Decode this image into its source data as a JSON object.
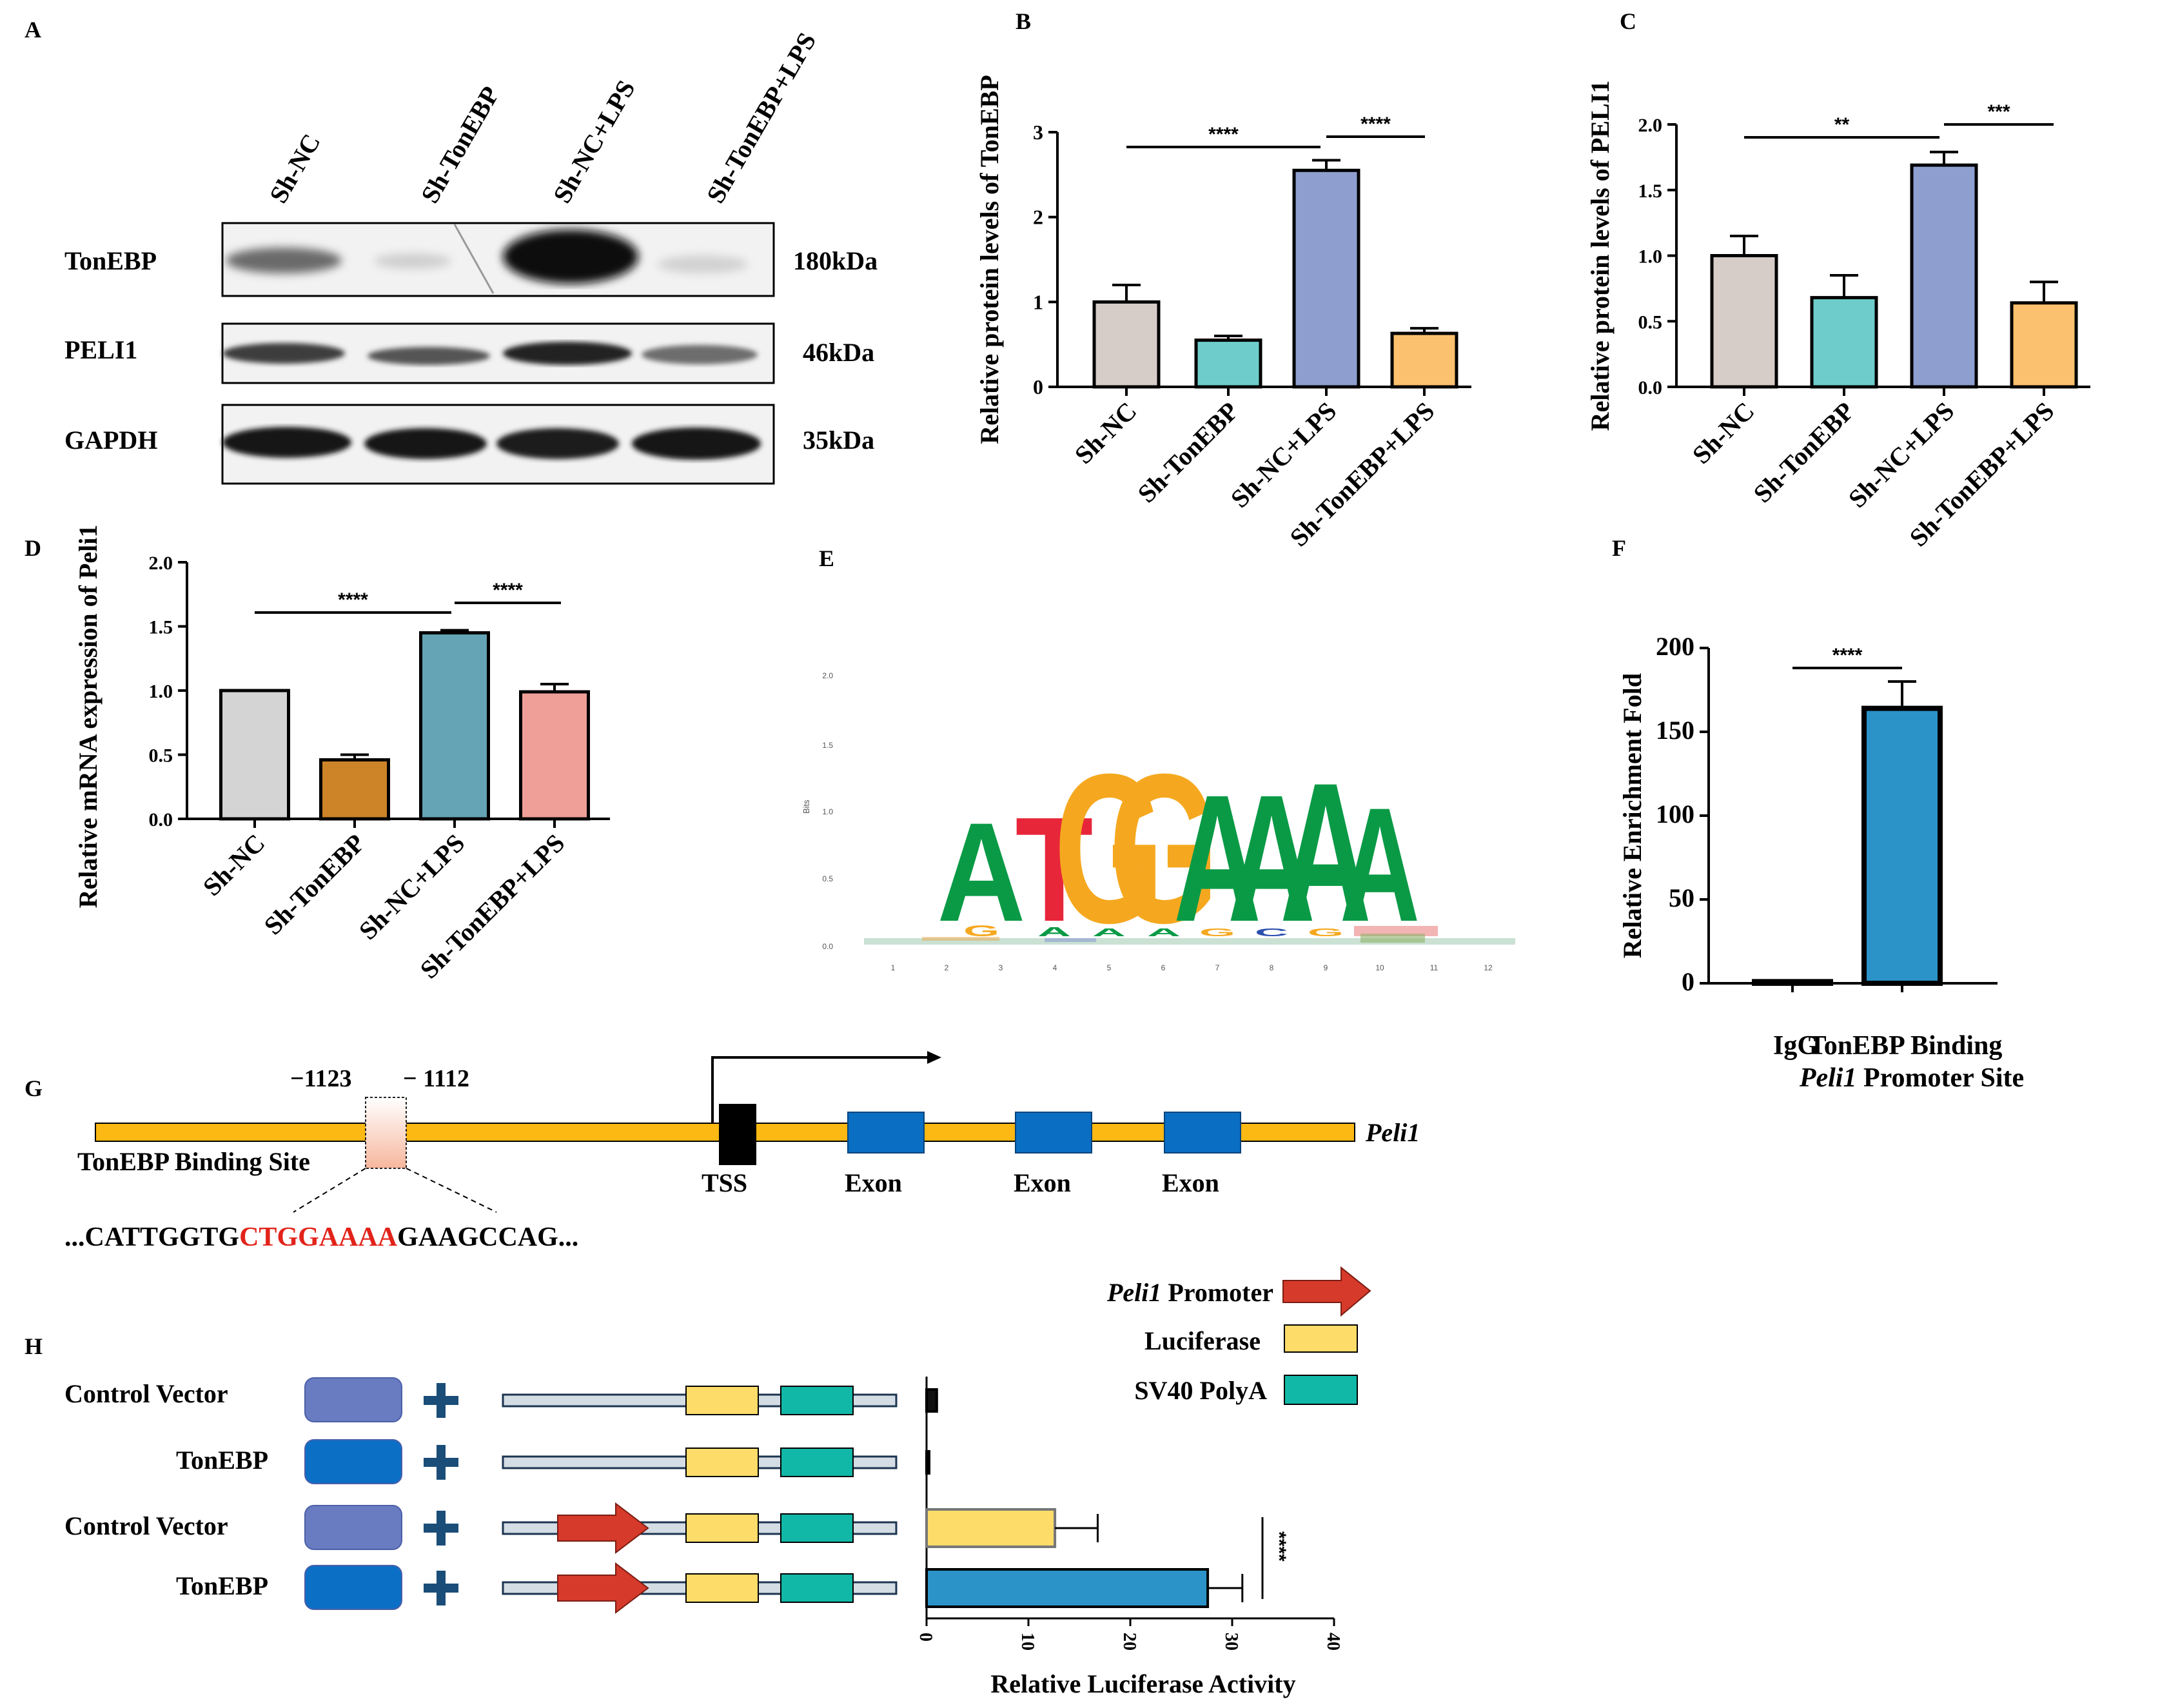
{
  "colors": {
    "gray": "#d6cdc8",
    "teal": "#6ecdcb",
    "lavender": "#8e9fcf",
    "orange": "#fbc16e",
    "d_gray": "#d4d4d4",
    "d_brown": "#cd8328",
    "d_blue": "#64a4b4",
    "d_pink": "#ef9f97",
    "f_blue": "#2b93c8",
    "gene_yellow": "#fcb813",
    "exon_blue": "#0a6ec3",
    "arrow_red": "#d63a2a",
    "luc_yellow": "#fddc6a",
    "polya_teal": "#11b8a8",
    "vec_purple": "#6a7cc1",
    "tonebp_blue": "#0b6fc6",
    "plus_navy": "#1a4d78",
    "motif_green": "#0a9a46",
    "motif_orange": "#f5a81f",
    "motif_red": "#e8263a",
    "motif_blue": "#2a4fae"
  },
  "panels": {
    "A": {
      "letter": "A",
      "lanes": [
        "Sh-NC",
        "Sh-TonEBP",
        "Sh-NC+LPS",
        "Sh-TonEBP+LPS"
      ],
      "rows": [
        {
          "name": "TonEBP",
          "size": "180kDa"
        },
        {
          "name": "PELI1",
          "size": "46kDa"
        },
        {
          "name": "GAPDH",
          "size": "35kDa"
        }
      ]
    },
    "E": {
      "letter": "E",
      "ylabel": "Bits",
      "motif": "ATGGAAAA"
    },
    "G": {
      "letter": "G",
      "pos1": "−1123",
      "pos2": "− 1112",
      "binding_label": "TonEBP Binding Site",
      "gene": "Peli1",
      "tss": "TSS",
      "exon": "Exon",
      "seq_left": "...CATTGGTG",
      "seq_mid": "CTGGAAAA",
      "seq_right": "GAAGCCAG..."
    },
    "H": {
      "letter": "H",
      "rows": [
        "Control Vector",
        "TonEBP",
        "Control Vector",
        "TonEBP"
      ],
      "legend": {
        "promoter_italic": "Peli1",
        "promoter": " Promoter",
        "luciferase": "Luciferase",
        "polya": "SV40 PolyA"
      }
    }
  },
  "chart_data": [
    {
      "id": "B",
      "letter": "B",
      "type": "bar",
      "ylabel": "Relative protein levels of TonEBP",
      "categories": [
        "Sh-NC",
        "Sh-TonEBP",
        "Sh-NC+LPS",
        "Sh-TonEBP+LPS"
      ],
      "values": [
        1.0,
        0.55,
        2.55,
        0.63
      ],
      "errors": [
        0.2,
        0.05,
        0.12,
        0.06
      ],
      "ylim": [
        0,
        3
      ],
      "yticks": [
        0,
        1,
        2,
        3
      ],
      "tick_labels": [
        "0",
        "1",
        "2",
        "3"
      ],
      "significance": [
        {
          "label": "****",
          "from": 0,
          "to": 2
        },
        {
          "label": "****",
          "from": 2,
          "to": 3
        }
      ]
    },
    {
      "id": "C",
      "letter": "C",
      "type": "bar",
      "ylabel": "Relative protein levels of PELI1",
      "categories": [
        "Sh-NC",
        "Sh-TonEBP",
        "Sh-NC+LPS",
        "Sh-TonEBP+LPS"
      ],
      "values": [
        1.0,
        0.68,
        1.69,
        0.64
      ],
      "errors": [
        0.15,
        0.17,
        0.1,
        0.16
      ],
      "ylim": [
        0,
        2.0
      ],
      "yticks": [
        0,
        0.5,
        1.0,
        1.5,
        2.0
      ],
      "tick_labels": [
        "0.0",
        "0.5",
        "1.0",
        "1.5",
        "2.0"
      ],
      "significance": [
        {
          "label": "**",
          "from": 0,
          "to": 2
        },
        {
          "label": "***",
          "from": 2,
          "to": 3
        }
      ]
    },
    {
      "id": "D",
      "letter": "D",
      "type": "bar",
      "ylabel": "Relative mRNA expression of Peli1",
      "categories": [
        "Sh-NC",
        "Sh-TonEBP",
        "Sh-NC+LPS",
        "Sh-TonEBP+LPS"
      ],
      "values": [
        1.0,
        0.46,
        1.45,
        0.99
      ],
      "errors": [
        0,
        0.04,
        0.02,
        0.06
      ],
      "ylim": [
        0,
        2.0
      ],
      "yticks": [
        0,
        0.5,
        1.0,
        1.5,
        2.0
      ],
      "tick_labels": [
        "0.0",
        "0.5",
        "1.0",
        "1.5",
        "2.0"
      ],
      "significance": [
        {
          "label": "****",
          "from": 0,
          "to": 2
        },
        {
          "label": "****",
          "from": 2,
          "to": 3
        }
      ]
    },
    {
      "id": "F",
      "letter": "F",
      "type": "bar",
      "ylabel": "Relative Enrichment Fold",
      "categories": [
        "IgG",
        "TonEBP Binding Peli1 Promoter Site"
      ],
      "cat_line1": [
        "IgG",
        "TonEBP Binding"
      ],
      "cat_line2_italic": [
        "",
        "Peli1"
      ],
      "cat_line2": [
        "",
        " Promoter Site"
      ],
      "values": [
        1,
        164
      ],
      "errors": [
        0,
        16
      ],
      "ylim": [
        0,
        200
      ],
      "yticks": [
        0,
        50,
        100,
        150,
        200
      ],
      "tick_labels": [
        "0",
        "50",
        "100",
        "150",
        "200"
      ],
      "significance": [
        {
          "label": "****",
          "from": 0,
          "to": 1
        }
      ]
    },
    {
      "id": "H",
      "type": "bar",
      "orientation": "horizontal",
      "xlabel": "Relative Luciferase Activity",
      "categories": [
        "Control Vector",
        "TonEBP",
        "Control Vector + Peli1 Promoter",
        "TonEBP + Peli1 Promoter"
      ],
      "values": [
        1.0,
        0.1,
        12.6,
        27.6
      ],
      "errors": [
        0.1,
        0,
        4.2,
        3.4
      ],
      "xlim": [
        0,
        40
      ],
      "xticks": [
        0,
        10,
        20,
        30,
        40
      ],
      "tick_labels": [
        "0",
        "10",
        "20",
        "30",
        "40"
      ],
      "significance": [
        {
          "label": "****",
          "from": 2,
          "to": 3
        }
      ]
    }
  ]
}
